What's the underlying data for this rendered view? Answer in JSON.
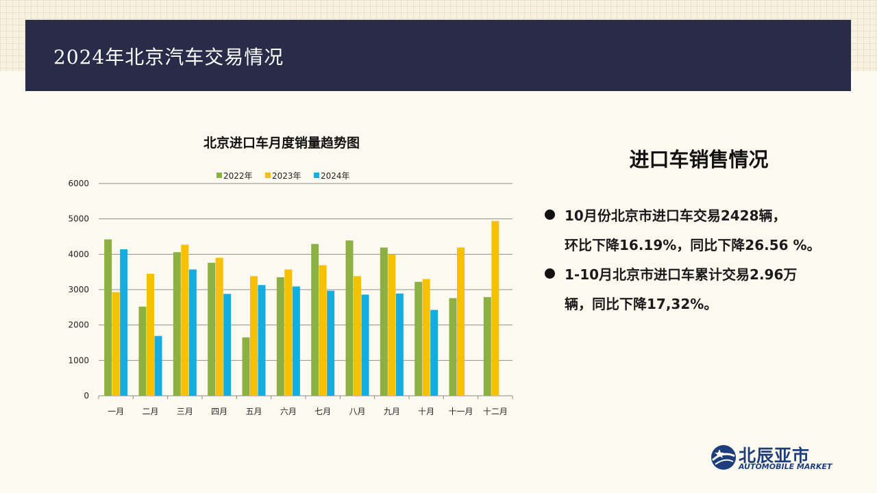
{
  "header": {
    "title": "2024年北京汽车交易情况"
  },
  "right_panel": {
    "heading": "进口车销售情况",
    "bullets": [
      {
        "line1": "10月份北京市进口车交易2428辆，",
        "line2": "环比下降16.19%，同比下降26.56 %。"
      },
      {
        "line1": "1-10月北京市进口车累计交易2.96万",
        "line2": "辆，同比下降17,32%。"
      }
    ]
  },
  "logo": {
    "cn": "北辰亚市",
    "en": "AUTOMOBILE MARKET",
    "color": "#1d3e7a"
  },
  "chart_data": {
    "type": "bar",
    "title": "北京进口车月度销量趋势图",
    "xlabel": "",
    "ylabel": "",
    "ylim": [
      0,
      6000
    ],
    "yticks": [
      0,
      1000,
      2000,
      3000,
      4000,
      5000,
      6000
    ],
    "grid": true,
    "legend_position": "top",
    "categories": [
      "一月",
      "二月",
      "三月",
      "四月",
      "五月",
      "六月",
      "七月",
      "八月",
      "九月",
      "十月",
      "十一月",
      "十二月"
    ],
    "series": [
      {
        "name": "2022年",
        "color": "#8db043",
        "values": [
          4420,
          2520,
          4060,
          3760,
          1650,
          3350,
          4290,
          4390,
          4190,
          3220,
          2760,
          2790
        ]
      },
      {
        "name": "2023年",
        "color": "#f7c000",
        "values": [
          2930,
          3450,
          4270,
          3900,
          3380,
          3570,
          3690,
          3380,
          3990,
          3300,
          4190,
          4940
        ]
      },
      {
        "name": "2024年",
        "color": "#14ade0",
        "values": [
          4140,
          1690,
          3570,
          2880,
          3130,
          3090,
          2970,
          2860,
          2890,
          2428,
          null,
          null
        ]
      }
    ]
  }
}
